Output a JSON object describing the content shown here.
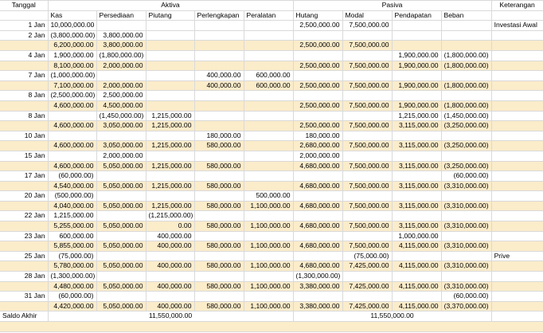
{
  "app": {
    "type": "spreadsheet-accounting-worksheet"
  },
  "colors": {
    "balance_row_bg": "#fbecca",
    "gridline": "#d9d9d9",
    "section_divider": "#ababab",
    "text": "#000000"
  },
  "table": {
    "headers": {
      "tanggal": "Tanggal",
      "aktiva": "Aktiva",
      "pasiva": "Pasiva",
      "keterangan": "Keterangan",
      "aktiva_cols": [
        "Kas",
        "Persediaan",
        "Piutang",
        "Perlengkapan",
        "Peralatan"
      ],
      "pasiva_cols": [
        "Hutang",
        "Modal",
        "Pendapatan",
        "Beban"
      ]
    },
    "column_keys": [
      "tanggal",
      "kas",
      "persediaan",
      "piutang",
      "perlengkapan",
      "peralatan",
      "hutang",
      "modal",
      "pendapatan",
      "beban",
      "keterangan"
    ],
    "rows": [
      {
        "type": "txn",
        "cells": [
          "1 Jan",
          "10,000,000.00",
          "",
          "",
          "",
          "",
          "2,500,000.00",
          "7,500,000.00",
          "",
          "",
          "Investasi Awal"
        ]
      },
      {
        "type": "txn",
        "cells": [
          "2 Jan",
          "(3,800,000.00)",
          "3,800,000.00",
          "",
          "",
          "",
          "",
          "",
          "",
          "",
          ""
        ]
      },
      {
        "type": "bal",
        "cells": [
          "",
          "6,200,000.00",
          "3,800,000.00",
          "",
          "",
          "",
          "2,500,000.00",
          "7,500,000.00",
          "",
          "",
          ""
        ]
      },
      {
        "type": "txn",
        "cells": [
          "4 Jan",
          "1,900,000.00",
          "(1,800,000.00)",
          "",
          "",
          "",
          "",
          "",
          "1,900,000.00",
          "(1,800,000.00)",
          ""
        ]
      },
      {
        "type": "bal",
        "cells": [
          "",
          "8,100,000.00",
          "2,000,000.00",
          "",
          "",
          "",
          "2,500,000.00",
          "7,500,000.00",
          "1,900,000.00",
          "(1,800,000.00)",
          ""
        ]
      },
      {
        "type": "txn",
        "cells": [
          "7 Jan",
          "(1,000,000.00)",
          "",
          "",
          "400,000.00",
          "600,000.00",
          "",
          "",
          "",
          "",
          ""
        ]
      },
      {
        "type": "bal",
        "cells": [
          "",
          "7,100,000.00",
          "2,000,000.00",
          "",
          "400,000.00",
          "600,000.00",
          "2,500,000.00",
          "7,500,000.00",
          "1,900,000.00",
          "(1,800,000.00)",
          ""
        ]
      },
      {
        "type": "txn",
        "cells": [
          "8 Jan",
          "(2,500,000.00)",
          "2,500,000.00",
          "",
          "",
          "",
          "",
          "",
          "",
          "",
          ""
        ]
      },
      {
        "type": "bal",
        "cells": [
          "",
          "4,600,000.00",
          "4,500,000.00",
          "",
          "",
          "",
          "2,500,000.00",
          "7,500,000.00",
          "1,900,000.00",
          "(1,800,000.00)",
          ""
        ]
      },
      {
        "type": "txn",
        "cells": [
          "8 Jan",
          "",
          "(1,450,000.00)",
          "1,215,000.00",
          "",
          "",
          "",
          "",
          "1,215,000.00",
          "(1,450,000.00)",
          ""
        ]
      },
      {
        "type": "bal",
        "cells": [
          "",
          "4,600,000.00",
          "3,050,000.00",
          "1,215,000.00",
          "",
          "",
          "2,500,000.00",
          "7,500,000.00",
          "3,115,000.00",
          "(3,250,000.00)",
          ""
        ]
      },
      {
        "type": "txn",
        "cells": [
          "10 Jan",
          "",
          "",
          "",
          "180,000.00",
          "",
          "180,000.00",
          "",
          "",
          "",
          ""
        ]
      },
      {
        "type": "bal",
        "cells": [
          "",
          "4,600,000.00",
          "3,050,000.00",
          "1,215,000.00",
          "580,000.00",
          "",
          "2,680,000.00",
          "7,500,000.00",
          "3,115,000.00",
          "(3,250,000.00)",
          ""
        ]
      },
      {
        "type": "txn",
        "cells": [
          "15 Jan",
          "",
          "2,000,000.00",
          "",
          "",
          "",
          "2,000,000.00",
          "",
          "",
          "",
          ""
        ]
      },
      {
        "type": "bal",
        "cells": [
          "",
          "4,600,000.00",
          "5,050,000.00",
          "1,215,000.00",
          "580,000.00",
          "",
          "4,680,000.00",
          "7,500,000.00",
          "3,115,000.00",
          "(3,250,000.00)",
          ""
        ]
      },
      {
        "type": "txn",
        "cells": [
          "17 Jan",
          "(60,000.00)",
          "",
          "",
          "",
          "",
          "",
          "",
          "",
          "(60,000.00)",
          ""
        ]
      },
      {
        "type": "bal",
        "cells": [
          "",
          "4,540,000.00",
          "5,050,000.00",
          "1,215,000.00",
          "580,000.00",
          "",
          "4,680,000.00",
          "7,500,000.00",
          "3,115,000.00",
          "(3,310,000.00)",
          ""
        ]
      },
      {
        "type": "txn",
        "cells": [
          "20 Jan",
          "(500,000.00)",
          "",
          "",
          "",
          "500,000.00",
          "",
          "",
          "",
          "",
          ""
        ]
      },
      {
        "type": "bal",
        "cells": [
          "",
          "4,040,000.00",
          "5,050,000.00",
          "1,215,000.00",
          "580,000.00",
          "1,100,000.00",
          "4,680,000.00",
          "7,500,000.00",
          "3,115,000.00",
          "(3,310,000.00)",
          ""
        ]
      },
      {
        "type": "txn",
        "cells": [
          "22 Jan",
          "1,215,000.00",
          "",
          "(1,215,000.00)",
          "",
          "",
          "",
          "",
          "",
          "",
          ""
        ]
      },
      {
        "type": "bal",
        "cells": [
          "",
          "5,255,000.00",
          "5,050,000.00",
          "0.00",
          "580,000.00",
          "1,100,000.00",
          "4,680,000.00",
          "7,500,000.00",
          "3,115,000.00",
          "(3,310,000.00)",
          ""
        ]
      },
      {
        "type": "txn",
        "cells": [
          "23 Jan",
          "600,000.00",
          "",
          "400,000.00",
          "",
          "",
          "",
          "",
          "1,000,000.00",
          "",
          ""
        ]
      },
      {
        "type": "bal",
        "cells": [
          "",
          "5,855,000.00",
          "5,050,000.00",
          "400,000.00",
          "580,000.00",
          "1,100,000.00",
          "4,680,000.00",
          "7,500,000.00",
          "4,115,000.00",
          "(3,310,000.00)",
          ""
        ]
      },
      {
        "type": "txn",
        "cells": [
          "25 Jan",
          "(75,000.00)",
          "",
          "",
          "",
          "",
          "",
          "(75,000.00)",
          "",
          "",
          "Prive"
        ]
      },
      {
        "type": "bal",
        "cells": [
          "",
          "5,780,000.00",
          "5,050,000.00",
          "400,000.00",
          "580,000.00",
          "1,100,000.00",
          "4,680,000.00",
          "7,425,000.00",
          "4,115,000.00",
          "(3,310,000.00)",
          ""
        ]
      },
      {
        "type": "txn",
        "cells": [
          "28 Jan",
          "(1,300,000.00)",
          "",
          "",
          "",
          "",
          "(1,300,000.00)",
          "",
          "",
          "",
          ""
        ]
      },
      {
        "type": "bal",
        "cells": [
          "",
          "4,480,000.00",
          "5,050,000.00",
          "400,000.00",
          "580,000.00",
          "1,100,000.00",
          "3,380,000.00",
          "7,425,000.00",
          "4,115,000.00",
          "(3,310,000.00)",
          ""
        ]
      },
      {
        "type": "txn",
        "cells": [
          "31 Jan",
          "(60,000.00)",
          "",
          "",
          "",
          "",
          "",
          "",
          "",
          "(60,000.00)",
          ""
        ]
      },
      {
        "type": "bal",
        "cells": [
          "",
          "4,420,000.00",
          "5,050,000.00",
          "400,000.00",
          "580,000.00",
          "1,100,000.00",
          "3,380,000.00",
          "7,425,000.00",
          "4,115,000.00",
          "(3,370,000.00)",
          ""
        ]
      }
    ],
    "saldo": {
      "label": "Saldo Akhir",
      "aktiva_total": "11,550,000.00",
      "pasiva_total": "11,550,000.00"
    }
  }
}
